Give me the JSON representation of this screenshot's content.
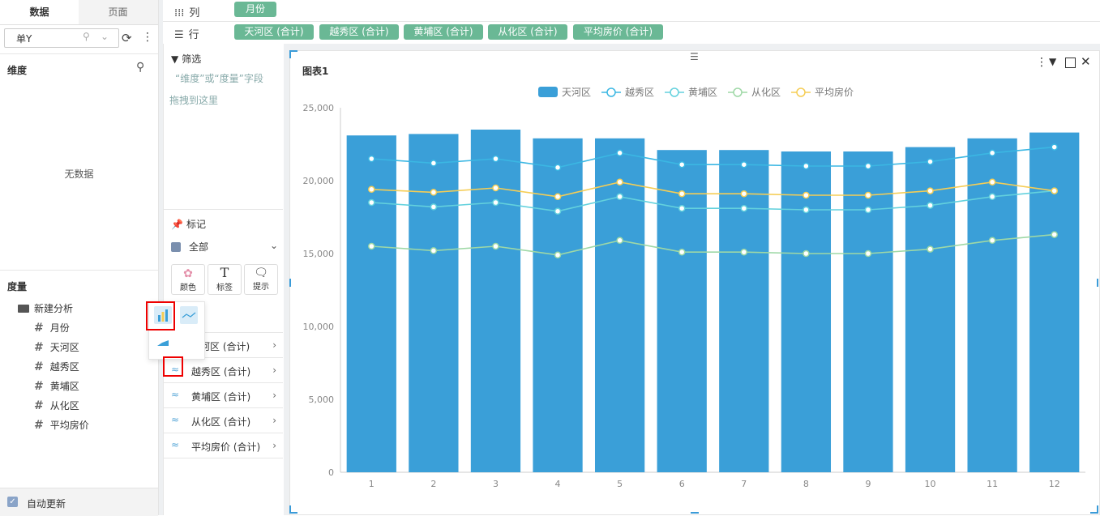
{
  "left_panel": {
    "tabs": [
      "数据",
      "页面"
    ],
    "dataset": "单Y",
    "dimension_title": "维度",
    "no_data": "无数据",
    "measure_title": "度量",
    "folder": "新建分析",
    "fields": [
      "月份",
      "天河区",
      "越秀区",
      "黄埔区",
      "从化区",
      "平均房价"
    ],
    "auto_update": "自动更新"
  },
  "shelves": {
    "columns_label": "列",
    "rows_label": "行",
    "columns": [
      "月份"
    ],
    "rows": [
      "天河区 (合计)",
      "越秀区 (合计)",
      "黄埔区 (合计)",
      "从化区 (合计)",
      "平均房价 (合计)"
    ]
  },
  "middle_panel": {
    "filter_title": "筛选",
    "filter_hint_1": "“维度”或“度量”字段",
    "filter_hint_2": "拖拽到这里",
    "marks_title": "标记",
    "all_label": "全部",
    "buttons": [
      "颜色",
      "标签",
      "提示"
    ],
    "series_rows": [
      "天河区 (合计)",
      "越秀区 (合计)",
      "黄埔区 (合计)",
      "从化区 (合计)",
      "平均房价 (合计)"
    ],
    "series_row_first_visible": "河区 (合计)"
  },
  "chart": {
    "title": "图表1"
  },
  "colors": {
    "accent_green": "#6ab895",
    "bar_blue": "#3a9fd8",
    "line_yuexiu": "#3bb7e3",
    "line_huangpu": "#63d1dd",
    "line_conghua": "#9ed8a6",
    "line_avg": "#f5cd55"
  },
  "chart_data": {
    "type": "bar",
    "categories": [
      "1",
      "2",
      "3",
      "4",
      "5",
      "6",
      "7",
      "8",
      "9",
      "10",
      "11",
      "12"
    ],
    "ylim": [
      0,
      25000
    ],
    "yticks": [
      "0",
      "5,000",
      "10,000",
      "15,000",
      "20,000",
      "25,000"
    ],
    "legend_position": "top-center",
    "series": [
      {
        "name": "天河区",
        "kind": "bar",
        "values": [
          23100,
          23200,
          23500,
          22900,
          22900,
          22100,
          22100,
          22000,
          22000,
          22300,
          22900,
          23300
        ]
      },
      {
        "name": "越秀区",
        "kind": "line",
        "values": [
          21500,
          21200,
          21500,
          20900,
          21900,
          21100,
          21100,
          21000,
          21000,
          21300,
          21900,
          22300
        ]
      },
      {
        "name": "黄埔区",
        "kind": "line",
        "values": [
          18500,
          18200,
          18500,
          17900,
          18900,
          18100,
          18100,
          18000,
          18000,
          18300,
          18900,
          19300
        ]
      },
      {
        "name": "从化区",
        "kind": "line",
        "values": [
          15500,
          15200,
          15500,
          14900,
          15900,
          15100,
          15100,
          15000,
          15000,
          15300,
          15900,
          16300
        ]
      },
      {
        "name": "平均房价",
        "kind": "line",
        "values": [
          19400,
          19200,
          19500,
          18900,
          19900,
          19100,
          19100,
          19000,
          19000,
          19300,
          19900,
          19300
        ]
      }
    ]
  }
}
